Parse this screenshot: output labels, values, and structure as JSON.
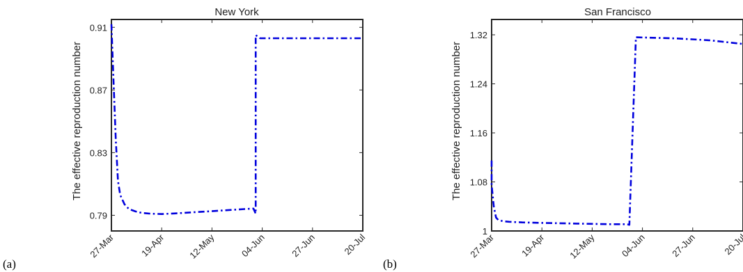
{
  "panel_labels": [
    "(a)",
    "(b)"
  ],
  "colors": {
    "series": "#0000dd",
    "axes": "#262626"
  },
  "chart_data": [
    {
      "type": "line",
      "title": "New York",
      "xlabel": "",
      "ylabel": "The effective reproduction number",
      "x_ticks": [
        "27-Mar",
        "19-Apr",
        "12-May",
        "04-Jun",
        "27-Jun",
        "20-Jul"
      ],
      "y_ticks": [
        "0.79",
        "0.83",
        "0.87",
        "0.91"
      ],
      "xlim": [
        "2020-03-27",
        "2020-07-20"
      ],
      "ylim": [
        0.78,
        0.915
      ],
      "grid": false,
      "series": [
        {
          "style": "dash-dot",
          "color": "#0000dd",
          "x": [
            "2020-03-27",
            "2020-03-28",
            "2020-03-29",
            "2020-03-30",
            "2020-03-31",
            "2020-04-02",
            "2020-04-04",
            "2020-04-07",
            "2020-04-10",
            "2020-04-14",
            "2020-04-19",
            "2020-04-25",
            "2020-05-02",
            "2020-05-10",
            "2020-05-18",
            "2020-05-27",
            "2020-05-31",
            "2020-06-01",
            "2020-06-01",
            "2020-06-03",
            "2020-06-20",
            "2020-07-20"
          ],
          "y": [
            0.912,
            0.875,
            0.838,
            0.812,
            0.803,
            0.797,
            0.794,
            0.7925,
            0.7915,
            0.791,
            0.7908,
            0.7912,
            0.7918,
            0.7925,
            0.7932,
            0.794,
            0.7943,
            0.791,
            0.905,
            0.903,
            0.903,
            0.903
          ]
        }
      ]
    },
    {
      "type": "line",
      "title": "San Francisco",
      "xlabel": "",
      "ylabel": "The effective reproduction number",
      "x_ticks": [
        "27-Mar",
        "19-Apr",
        "12-May",
        "04-Jun",
        "27-Jun",
        "20-Jul"
      ],
      "y_ticks": [
        "1",
        "1.08",
        "1.16",
        "1.24",
        "1.32"
      ],
      "xlim": [
        "2020-03-27",
        "2020-07-20"
      ],
      "ylim": [
        1.0,
        1.345
      ],
      "grid": false,
      "series": [
        {
          "style": "dash-dot",
          "color": "#0000dd",
          "x": [
            "2020-03-27",
            "2020-03-27",
            "2020-03-28",
            "2020-03-29",
            "2020-03-30",
            "2020-04-01",
            "2020-04-04",
            "2020-04-10",
            "2020-04-20",
            "2020-05-05",
            "2020-05-20",
            "2020-05-28",
            "2020-05-29",
            "2020-06-01",
            "2020-06-20",
            "2020-07-05",
            "2020-07-20"
          ],
          "y": [
            1.115,
            1.075,
            1.04,
            1.022,
            1.018,
            1.016,
            1.015,
            1.014,
            1.013,
            1.012,
            1.011,
            1.011,
            1.01,
            1.316,
            1.314,
            1.311,
            1.305
          ]
        }
      ]
    }
  ]
}
